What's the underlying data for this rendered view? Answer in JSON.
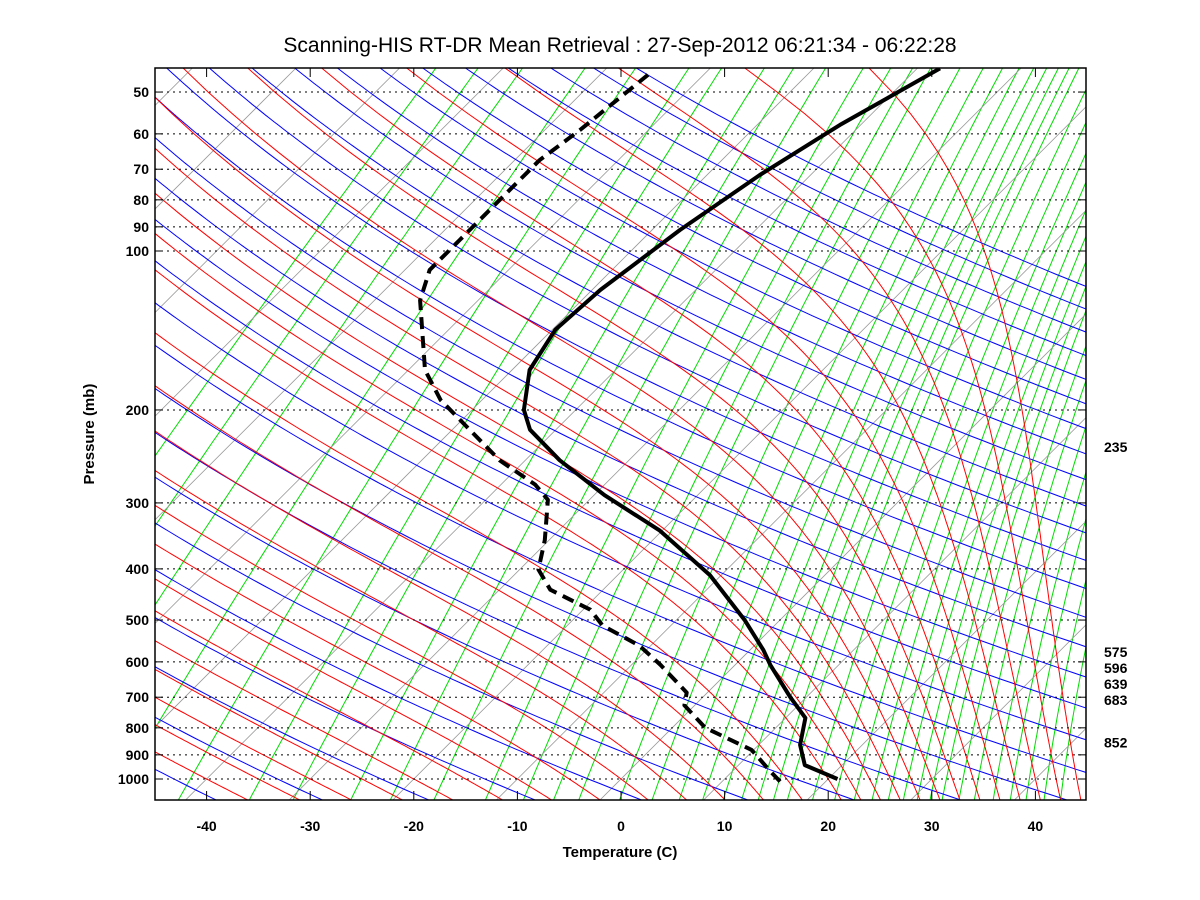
{
  "chart_data": {
    "type": "line",
    "subtype": "skew-T log-P diagram",
    "title": "Scanning-HIS RT-DR Mean Retrieval : 27-Sep-2012 06:21:34 - 06:22:28",
    "xlabel": "Temperature (C)",
    "ylabel": "Pressure (mb)",
    "xlim": [
      -45,
      45
    ],
    "ylim": [
      1100,
      45
    ],
    "yscale": "log",
    "x_ticks": [
      "-40",
      "-30",
      "-20",
      "-10",
      "0",
      "10",
      "20",
      "30",
      "40"
    ],
    "x_tick_values": [
      -40,
      -30,
      -20,
      -10,
      0,
      10,
      20,
      30,
      40
    ],
    "y_ticks": [
      "50",
      "60",
      "70",
      "80",
      "90",
      "100",
      "200",
      "300",
      "400",
      "500",
      "600",
      "700",
      "800",
      "900",
      "1000"
    ],
    "y_tick_values": [
      50,
      60,
      70,
      80,
      90,
      100,
      200,
      300,
      400,
      500,
      600,
      700,
      800,
      900,
      1000
    ],
    "grid": "horizontal dotted at pressure ticks",
    "right_labels": [
      "235",
      "575",
      "596",
      "639",
      "683",
      "852"
    ],
    "right_label_values": [
      235,
      575,
      596,
      639,
      683,
      852
    ],
    "series": [
      {
        "name": "Temperature",
        "style": "solid",
        "color": "#000000",
        "p": [
          1000,
          941,
          862,
          766,
          699,
          608,
          570,
          500,
          411,
          338,
          290,
          249,
          218,
          200,
          168,
          141,
          118.5,
          91.2,
          71.8,
          57.7,
          45.1
        ],
        "t": [
          20.9,
          16.4,
          14.0,
          11.9,
          8.4,
          3.4,
          1.3,
          -3.4,
          -11.1,
          -20.3,
          -29.0,
          -36.7,
          -42.5,
          -45.0,
          -48.3,
          -49.7,
          -49.2,
          -47.3,
          -44.9,
          -42.0,
          -37.8
        ]
      },
      {
        "name": "Dewpoint",
        "style": "dashed",
        "color": "#000000",
        "p": [
          1011,
          963,
          881,
          800,
          725,
          686,
          608,
          559,
          512,
          478,
          438,
          401,
          353,
          296,
          277,
          249,
          191.5,
          168,
          124,
          108.6,
          95.3,
          80,
          67.3,
          59,
          45.8
        ],
        "t": [
          15.6,
          13.5,
          9.8,
          3.2,
          -1.0,
          -2.0,
          -7.2,
          -11.1,
          -16.6,
          -19.3,
          -25.1,
          -28.2,
          -30.4,
          -34.0,
          -36.7,
          -42.5,
          -54.0,
          -58.4,
          -65.6,
          -67.6,
          -67.6,
          -67.6,
          -67.6,
          -66.6,
          -65.3
        ]
      }
    ],
    "background": {
      "isotherm_color": "#999999",
      "dry_adiabat_color": "#0000ff",
      "moist_adiabat_color": "#ff0000",
      "mixing_ratio_color": "#00dd00",
      "isotherms_c": [
        -120,
        -110,
        -100,
        -90,
        -80,
        -70,
        -60,
        -50,
        -40,
        -30,
        -20,
        -10,
        0,
        10,
        20,
        30,
        40
      ],
      "dry_adiabats_k": [
        230,
        240,
        250,
        260,
        270,
        280,
        290,
        300,
        310,
        320,
        330,
        340,
        350,
        360,
        370,
        380,
        390,
        400,
        410,
        420,
        430,
        440,
        450,
        460,
        470,
        480,
        490,
        500
      ],
      "moist_adiabats_c_at_1000": [
        -40,
        -35,
        -30,
        -25,
        -20,
        -15,
        -10,
        -5,
        0,
        4,
        8,
        12,
        16,
        20,
        22,
        24,
        26,
        28,
        30,
        32,
        34,
        36,
        38,
        40,
        42,
        44
      ],
      "mixing_ratios_gkg": [
        0.005,
        0.01,
        0.02,
        0.05,
        0.1,
        0.2,
        0.3,
        0.5,
        0.7,
        1,
        1.5,
        2,
        2.5,
        3,
        4,
        5,
        6,
        7,
        8,
        9,
        10,
        11,
        12,
        14,
        16,
        18,
        20,
        22,
        24,
        26,
        28,
        30,
        33,
        36,
        40,
        44,
        48,
        53,
        58
      ]
    }
  }
}
